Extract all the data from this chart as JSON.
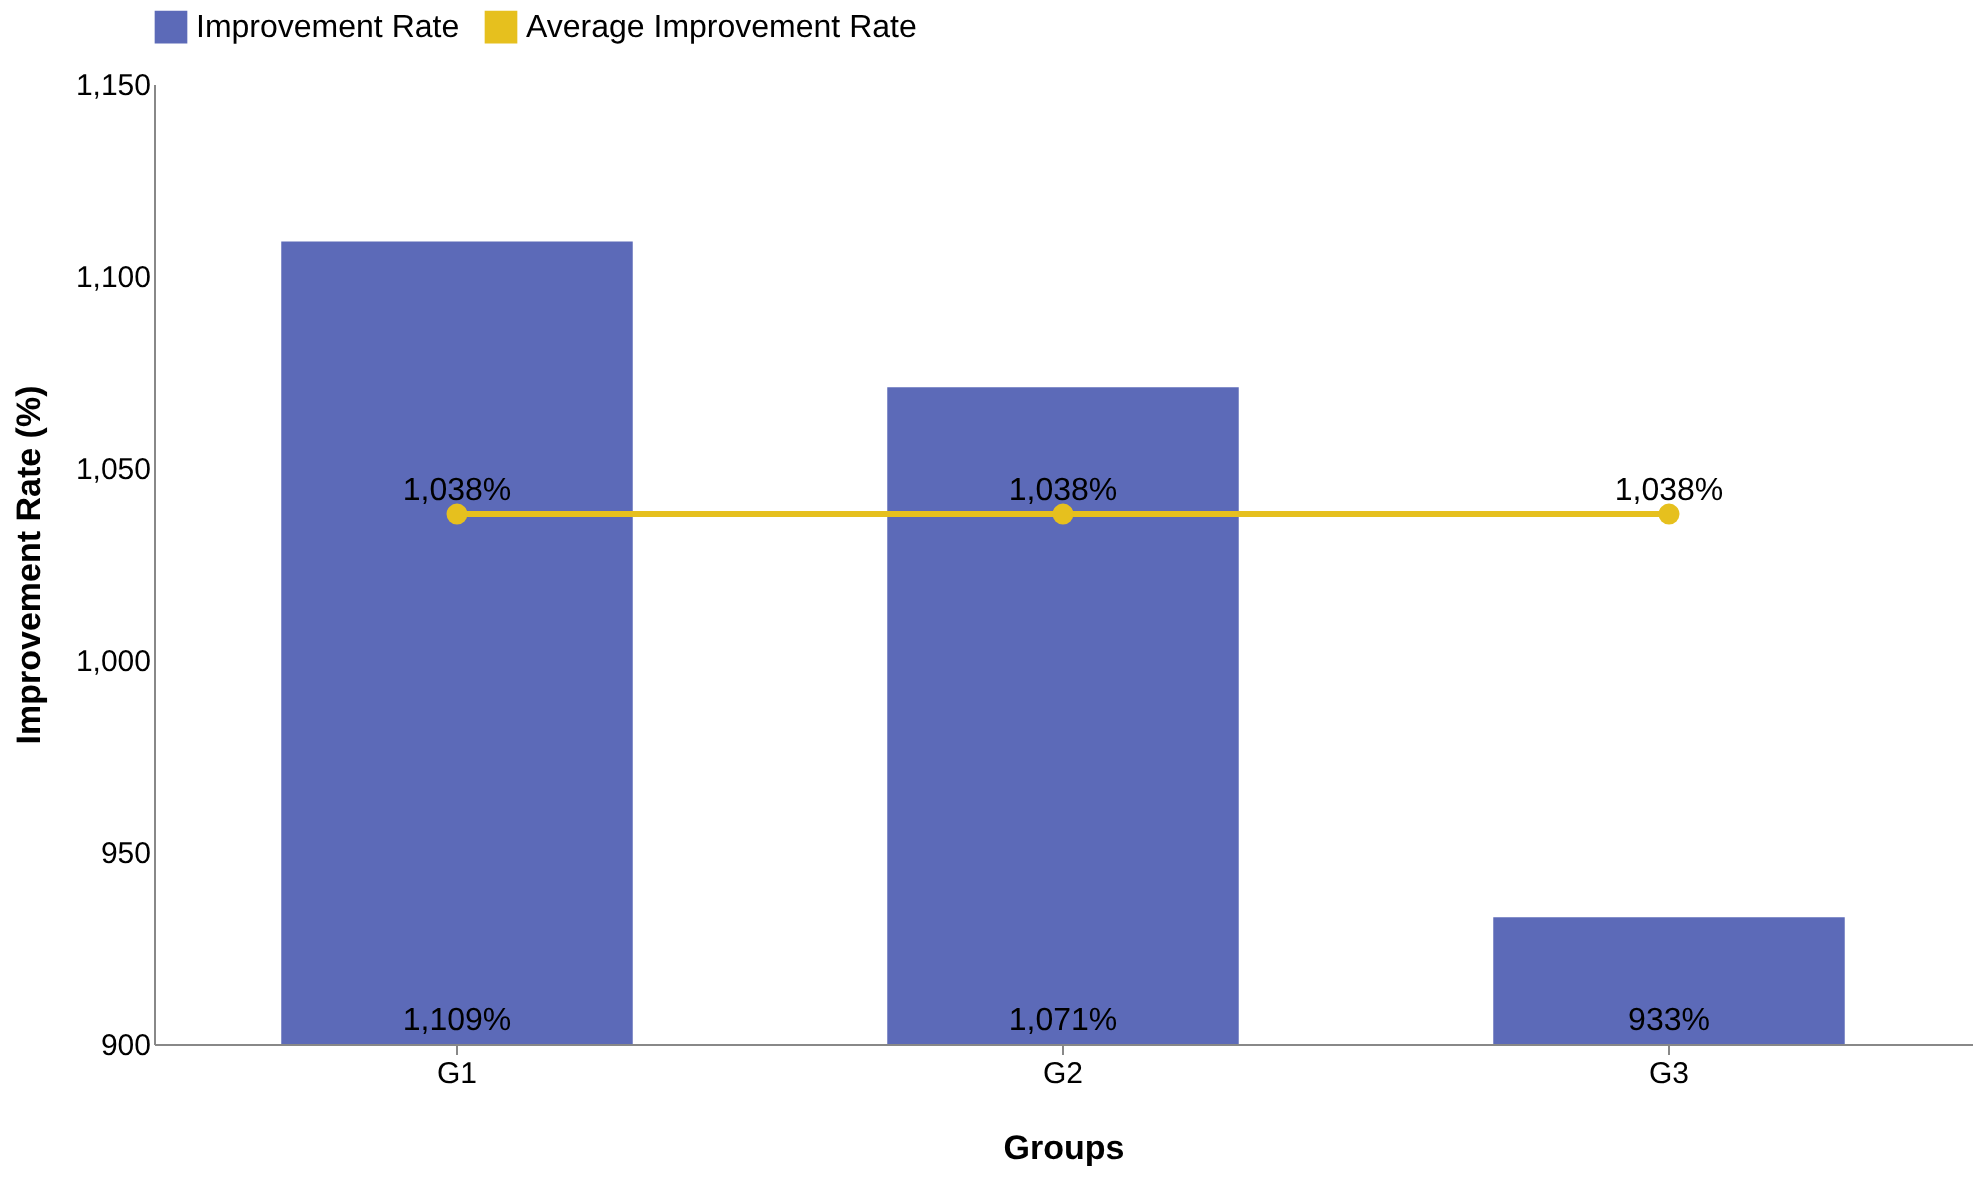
{
  "chart_data": {
    "type": "bar",
    "xlabel": "Groups",
    "ylabel": "Improvement Rate (%)",
    "categories": [
      "G1",
      "G2",
      "G3"
    ],
    "series": [
      {
        "name": "Improvement Rate",
        "color": "#5c6ab8",
        "values": [
          1109,
          1071,
          933
        ],
        "value_labels": [
          "1,109%",
          "1,071%",
          "933%"
        ]
      },
      {
        "name": "Average Improvement Rate",
        "type": "line",
        "color": "#e6c01e",
        "values": [
          1038,
          1038,
          1038
        ],
        "value_labels": [
          "1,038%",
          "1,038%",
          "1,038%"
        ]
      }
    ],
    "ylim": [
      900,
      1150
    ],
    "yticks": [
      900,
      950,
      {
        "value": 1000,
        "label": "1,000"
      },
      {
        "value": 1050,
        "label": "1,050"
      },
      {
        "value": 1100,
        "label": "1,100"
      },
      {
        "value": 1150,
        "label": "1,150"
      }
    ],
    "grid": false,
    "legend": "top",
    "marker": "circle",
    "line_style": "solid"
  }
}
